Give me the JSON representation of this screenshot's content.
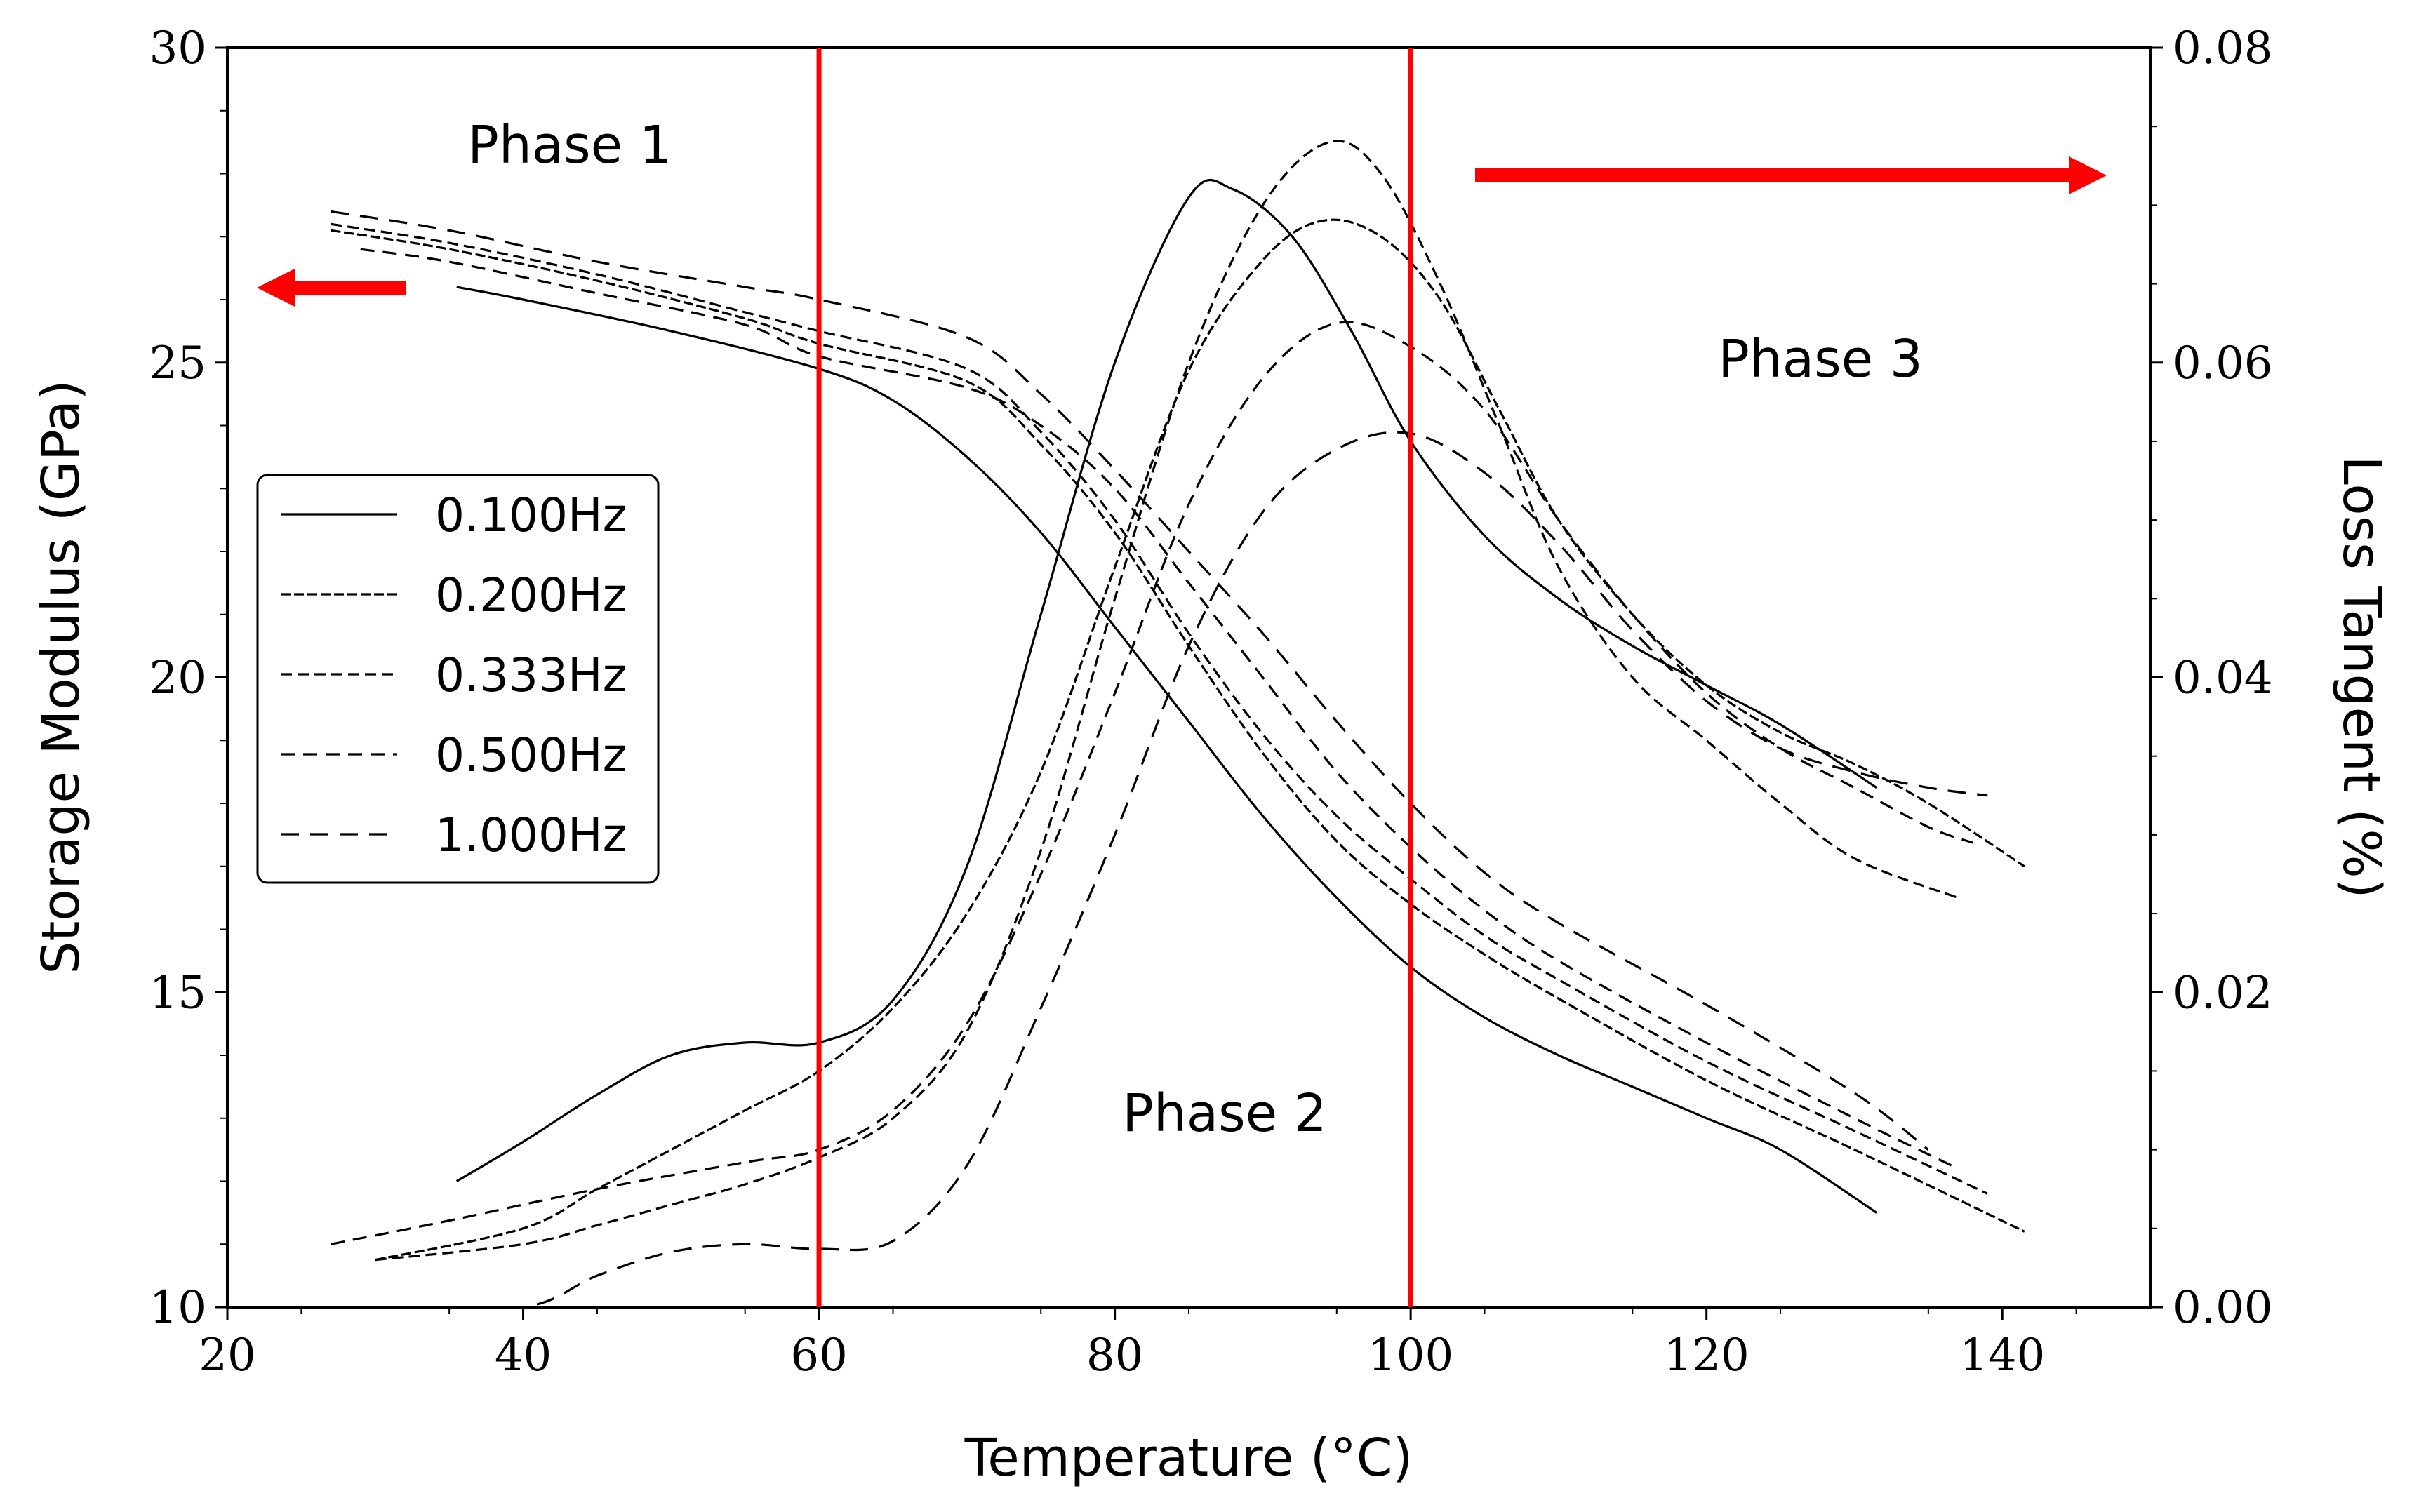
{
  "chart_data": {
    "type": "line",
    "xlabel": "Temperature (°C)",
    "ylabel_left": "Storage Modulus (GPa)",
    "ylabel_right": "Loss Tangent (%)",
    "xlim": [
      20,
      150
    ],
    "ylim_left": [
      10,
      30
    ],
    "ylim_right": [
      0.0,
      0.08
    ],
    "xticks": [
      "20",
      "40",
      "60",
      "80",
      "100",
      "120",
      "140"
    ],
    "yticks_left": [
      "10",
      "15",
      "20",
      "25",
      "30"
    ],
    "yticks_right": [
      "0.00",
      "0.02",
      "0.04",
      "0.06",
      "0.08"
    ],
    "phase_lines_x": [
      60,
      100
    ],
    "phase_labels": [
      "Phase 1",
      "Phase 2",
      "Phase 3"
    ],
    "arrow_left_color": "#ff0000",
    "arrow_right_color": "#ff0000",
    "phase_line_color": "#ff0000",
    "legend": [
      "0.100Hz",
      "0.200Hz",
      "0.333Hz",
      "0.500Hz",
      "1.000Hz"
    ],
    "series": [
      {
        "name": "0.100Hz",
        "dash": "solid",
        "storage_modulus": [
          [
            35.5,
            26.2
          ],
          [
            40,
            26.0
          ],
          [
            50,
            25.5
          ],
          [
            60,
            24.9
          ],
          [
            65,
            24.4
          ],
          [
            70,
            23.5
          ],
          [
            75,
            22.3
          ],
          [
            80,
            20.8
          ],
          [
            85,
            19.3
          ],
          [
            90,
            17.8
          ],
          [
            95,
            16.5
          ],
          [
            100,
            15.4
          ],
          [
            105,
            14.6
          ],
          [
            110,
            14.0
          ],
          [
            115,
            13.5
          ],
          [
            120,
            13.0
          ],
          [
            125,
            12.5
          ],
          [
            131.5,
            11.5
          ]
        ],
        "loss_tangent": [
          [
            35.5,
            0.008
          ],
          [
            40,
            0.0105
          ],
          [
            45,
            0.0135
          ],
          [
            50,
            0.016
          ],
          [
            55,
            0.0168
          ],
          [
            60,
            0.0168
          ],
          [
            65,
            0.0195
          ],
          [
            70,
            0.028
          ],
          [
            75,
            0.044
          ],
          [
            80,
            0.06
          ],
          [
            85,
            0.0705
          ],
          [
            88,
            0.071
          ],
          [
            92,
            0.068
          ],
          [
            96,
            0.062
          ],
          [
            100,
            0.055
          ],
          [
            105,
            0.049
          ],
          [
            110,
            0.045
          ],
          [
            115,
            0.042
          ],
          [
            120,
            0.0395
          ],
          [
            125,
            0.037
          ],
          [
            131.5,
            0.033
          ]
        ]
      },
      {
        "name": "0.200Hz",
        "dash": "fine",
        "storage_modulus": [
          [
            27,
            27.1
          ],
          [
            35,
            26.8
          ],
          [
            45,
            26.3
          ],
          [
            55,
            25.7
          ],
          [
            60,
            25.3
          ],
          [
            70,
            24.7
          ],
          [
            75,
            23.7
          ],
          [
            80,
            22.3
          ],
          [
            85,
            20.5
          ],
          [
            90,
            18.8
          ],
          [
            95,
            17.4
          ],
          [
            100,
            16.4
          ],
          [
            105,
            15.6
          ],
          [
            110,
            14.9
          ],
          [
            120,
            13.6
          ],
          [
            130,
            12.5
          ],
          [
            141.5,
            11.2
          ]
        ],
        "loss_tangent": [
          [
            30,
            0.003
          ],
          [
            40,
            0.005
          ],
          [
            45,
            0.0075
          ],
          [
            50,
            0.01
          ],
          [
            55,
            0.0125
          ],
          [
            60,
            0.015
          ],
          [
            65,
            0.019
          ],
          [
            70,
            0.025
          ],
          [
            75,
            0.034
          ],
          [
            80,
            0.047
          ],
          [
            85,
            0.0595
          ],
          [
            90,
            0.0665
          ],
          [
            94,
            0.069
          ],
          [
            98,
            0.068
          ],
          [
            102,
            0.064
          ],
          [
            106,
            0.057
          ],
          [
            110,
            0.05
          ],
          [
            115,
            0.044
          ],
          [
            120,
            0.0395
          ],
          [
            125,
            0.0365
          ],
          [
            130,
            0.0345
          ],
          [
            135,
            0.032
          ],
          [
            141.5,
            0.028
          ]
        ]
      },
      {
        "name": "0.333Hz",
        "dash": "short",
        "storage_modulus": [
          [
            27,
            27.2
          ],
          [
            35,
            26.9
          ],
          [
            45,
            26.4
          ],
          [
            55,
            25.8
          ],
          [
            60,
            25.5
          ],
          [
            70,
            24.9
          ],
          [
            75,
            23.9
          ],
          [
            80,
            22.5
          ],
          [
            85,
            20.7
          ],
          [
            90,
            19.1
          ],
          [
            95,
            17.8
          ],
          [
            100,
            16.8
          ],
          [
            105,
            15.9
          ],
          [
            110,
            15.2
          ],
          [
            120,
            13.9
          ],
          [
            130,
            12.8
          ],
          [
            139,
            11.8
          ]
        ],
        "loss_tangent": [
          [
            30,
            0.003
          ],
          [
            40,
            0.004
          ],
          [
            45,
            0.0052
          ],
          [
            50,
            0.0065
          ],
          [
            55,
            0.0078
          ],
          [
            60,
            0.0095
          ],
          [
            65,
            0.012
          ],
          [
            70,
            0.0175
          ],
          [
            75,
            0.029
          ],
          [
            80,
            0.045
          ],
          [
            85,
            0.06
          ],
          [
            90,
            0.07
          ],
          [
            94.5,
            0.074
          ],
          [
            98,
            0.072
          ],
          [
            102,
            0.065
          ],
          [
            106,
            0.056
          ],
          [
            110,
            0.047
          ],
          [
            115,
            0.04
          ],
          [
            120,
            0.036
          ],
          [
            125,
            0.032
          ],
          [
            130,
            0.0285
          ],
          [
            137,
            0.026
          ]
        ]
      },
      {
        "name": "0.500Hz",
        "dash": "medium",
        "storage_modulus": [
          [
            29,
            26.8
          ],
          [
            35,
            26.6
          ],
          [
            45,
            26.1
          ],
          [
            55,
            25.6
          ],
          [
            60,
            25.1
          ],
          [
            70,
            24.6
          ],
          [
            75,
            24.0
          ],
          [
            80,
            23.0
          ],
          [
            85,
            21.5
          ],
          [
            90,
            20.0
          ],
          [
            95,
            18.5
          ],
          [
            100,
            17.3
          ],
          [
            105,
            16.3
          ],
          [
            110,
            15.5
          ],
          [
            120,
            14.2
          ],
          [
            130,
            13.0
          ],
          [
            137,
            12.2
          ]
        ],
        "loss_tangent": [
          [
            27,
            0.004
          ],
          [
            35,
            0.0055
          ],
          [
            45,
            0.0075
          ],
          [
            55,
            0.0092
          ],
          [
            60,
            0.01
          ],
          [
            65,
            0.0125
          ],
          [
            70,
            0.018
          ],
          [
            75,
            0.0275
          ],
          [
            80,
            0.039
          ],
          [
            85,
            0.051
          ],
          [
            90,
            0.059
          ],
          [
            95,
            0.0625
          ],
          [
            100,
            0.061
          ],
          [
            105,
            0.057
          ],
          [
            110,
            0.05
          ],
          [
            115,
            0.044
          ],
          [
            120,
            0.039
          ],
          [
            125,
            0.0355
          ],
          [
            130,
            0.033
          ],
          [
            135,
            0.0305
          ],
          [
            138,
            0.0295
          ]
        ]
      },
      {
        "name": "1.000Hz",
        "dash": "long",
        "storage_modulus": [
          [
            27,
            27.4
          ],
          [
            35,
            27.1
          ],
          [
            45,
            26.6
          ],
          [
            55,
            26.2
          ],
          [
            60,
            26.0
          ],
          [
            70,
            25.4
          ],
          [
            75,
            24.5
          ],
          [
            80,
            23.3
          ],
          [
            85,
            22.0
          ],
          [
            90,
            20.7
          ],
          [
            95,
            19.3
          ],
          [
            100,
            18.0
          ],
          [
            105,
            16.9
          ],
          [
            110,
            16.1
          ],
          [
            120,
            14.8
          ],
          [
            130,
            13.4
          ],
          [
            135,
            12.5
          ]
        ],
        "loss_tangent": [
          [
            27,
            0.0
          ],
          [
            30,
            0.0
          ],
          [
            40,
            0.0
          ],
          [
            45,
            0.002
          ],
          [
            50,
            0.0035
          ],
          [
            55,
            0.004
          ],
          [
            60,
            0.0037
          ],
          [
            65,
            0.0042
          ],
          [
            70,
            0.009
          ],
          [
            75,
            0.019
          ],
          [
            80,
            0.03
          ],
          [
            85,
            0.042
          ],
          [
            90,
            0.0505
          ],
          [
            95,
            0.0545
          ],
          [
            100,
            0.0555
          ],
          [
            105,
            0.053
          ],
          [
            110,
            0.0485
          ],
          [
            115,
            0.043
          ],
          [
            120,
            0.0385
          ],
          [
            125,
            0.0355
          ],
          [
            130,
            0.034
          ],
          [
            135,
            0.033
          ],
          [
            139,
            0.0325
          ]
        ]
      }
    ]
  }
}
